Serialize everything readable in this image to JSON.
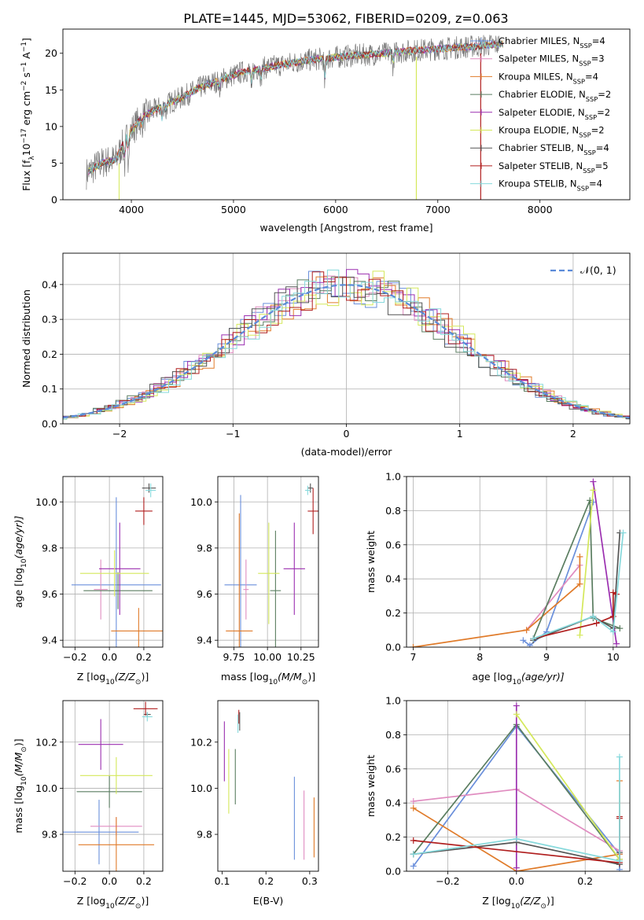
{
  "figure": {
    "title": "PLATE=1445, MJD=53062, FIBERID=0209, z=0.063"
  },
  "models": [
    {
      "label": "Chabrier MILES, N",
      "sub": "SSP",
      "suffix": "=4",
      "color": "#6a8fdb"
    },
    {
      "label": "Salpeter MILES, N",
      "sub": "SSP",
      "suffix": "=3",
      "color": "#e08cc0"
    },
    {
      "label": "Kroupa MILES, N",
      "sub": "SSP",
      "suffix": "=4",
      "color": "#e07b2a"
    },
    {
      "label": "Chabrier ELODIE, N",
      "sub": "SSP",
      "suffix": "=2",
      "color": "#5a7d60"
    },
    {
      "label": "Salpeter ELODIE, N",
      "sub": "SSP",
      "suffix": "=2",
      "color": "#9b2fb0"
    },
    {
      "label": "Kroupa ELODIE, N",
      "sub": "SSP",
      "suffix": "=2",
      "color": "#d4e85a"
    },
    {
      "label": "Chabrier STELIB, N",
      "sub": "SSP",
      "suffix": "=4",
      "color": "#555555"
    },
    {
      "label": "Salpeter STELIB, N",
      "sub": "SSP",
      "suffix": "=5",
      "color": "#b01e1e"
    },
    {
      "label": "Kroupa STELIB, N",
      "sub": "SSP",
      "suffix": "=4",
      "color": "#86d9dc"
    }
  ],
  "chart_data": [
    {
      "id": "spectrum",
      "type": "line",
      "title": "PLATE=1445, MJD=53062, FIBERID=0209, z=0.063",
      "xlabel": "wavelength [Angstrom, rest frame]",
      "ylabel_main": "Flux [f",
      "ylabel_lambda": "λ",
      "ylabel_rest": "10",
      "ylabel_exp1": "−17",
      "ylabel_mid": " erg cm",
      "ylabel_exp2": "−2",
      "ylabel_s": " s",
      "ylabel_exp3": "−1",
      "ylabel_A": " A",
      "ylabel_exp4": "−1",
      "ylabel_end": "]",
      "xlim": [
        3330,
        8880
      ],
      "ylim": [
        0,
        23.3
      ],
      "xticks": [
        4000,
        5000,
        6000,
        7000,
        8000
      ],
      "yticks": [
        0,
        5,
        10,
        15,
        20
      ],
      "continuum_x": [
        3550,
        3700,
        3850,
        3950,
        4100,
        4300,
        4500,
        4700,
        4900,
        5100,
        5300,
        5500,
        5700,
        5900,
        6100,
        6300,
        6500,
        6700,
        6900,
        7100,
        7300,
        7500,
        7700
      ],
      "continuum_y": [
        3.5,
        5.0,
        5.5,
        8.5,
        11.2,
        12.8,
        14.0,
        15.5,
        16.5,
        17.5,
        18.0,
        18.5,
        19.0,
        19.3,
        19.6,
        19.8,
        20.0,
        20.3,
        20.5,
        20.7,
        20.9,
        21.1,
        21.3
      ]
    },
    {
      "id": "residuals",
      "type": "histogram",
      "xlabel": "(data-model)/error",
      "ylabel": "Normed distribution",
      "xlim": [
        -2.5,
        2.5
      ],
      "ylim": [
        0,
        0.49
      ],
      "xticks": [
        -2,
        -1,
        0,
        1,
        2
      ],
      "yticks": [
        0.0,
        0.1,
        0.2,
        0.3,
        0.4
      ],
      "reference_label": "𝒩(0, 1)",
      "reference_color": "#5b8bd9"
    },
    {
      "id": "age-vs-Z",
      "type": "scatter",
      "xlabel": "Z [log",
      "xlabel_sub": "10",
      "xlabel_rest": "(Z/Z",
      "xlabel_sun": "⊙",
      "xlabel_end": ")]",
      "ylabel": "age  [log",
      "ylabel_sub": "10",
      "ylabel_rest": "(age/yr)]",
      "xlim": [
        -0.27,
        0.31
      ],
      "ylim": [
        9.37,
        10.11
      ],
      "xticks": [
        -0.2,
        0.0,
        0.2
      ],
      "yticks": [
        9.4,
        9.6,
        9.8,
        10.0
      ],
      "points": [
        {
          "x": 0.04,
          "y": 9.64,
          "xerr": 0.26,
          "yerr": 0.38
        },
        {
          "x": -0.05,
          "y": 9.62,
          "xerr": 0.04,
          "yerr": 0.13
        },
        {
          "x": 0.17,
          "y": 9.44,
          "xerr": 0.16,
          "yerr": 0.1
        },
        {
          "x": 0.05,
          "y": 9.615,
          "xerr": 0.2,
          "yerr": 0.08
        },
        {
          "x": 0.06,
          "y": 9.71,
          "xerr": 0.12,
          "yerr": 0.2
        },
        {
          "x": 0.03,
          "y": 9.69,
          "xerr": 0.2,
          "yerr": 0.1
        },
        {
          "x": 0.23,
          "y": 10.06,
          "xerr": 0.04,
          "yerr": 0.02
        },
        {
          "x": 0.2,
          "y": 9.96,
          "xerr": 0.05,
          "yerr": 0.06
        },
        {
          "x": 0.24,
          "y": 10.05,
          "xerr": 0.03,
          "yerr": 0.03
        }
      ]
    },
    {
      "id": "age-vs-mass",
      "type": "scatter",
      "xlabel": "mass [log",
      "xlabel_sub": "10",
      "xlabel_rest": "(M/M",
      "xlabel_sun": "⊙",
      "xlabel_end": ")]",
      "xlim": [
        9.63,
        10.38
      ],
      "ylim": [
        9.37,
        10.11
      ],
      "xticks": [
        9.75,
        10.0,
        10.25
      ],
      "xtick_labels": [
        "9.75",
        "10.00",
        "10.25"
      ],
      "yticks": [
        9.4,
        9.6,
        9.8,
        10.0
      ],
      "points": [
        {
          "x": 9.8,
          "y": 9.64,
          "xerr": 0.12,
          "yerr": 0.39
        },
        {
          "x": 9.84,
          "y": 9.62,
          "xerr": 0.02,
          "yerr": 0.13
        },
        {
          "x": 9.79,
          "y": 9.44,
          "xerr": 0.1,
          "yerr": 0.51
        },
        {
          "x": 10.06,
          "y": 9.615,
          "xerr": 0.04,
          "yerr": 0.26
        },
        {
          "x": 10.2,
          "y": 9.71,
          "xerr": 0.08,
          "yerr": 0.2
        },
        {
          "x": 10.01,
          "y": 9.69,
          "xerr": 0.08,
          "yerr": 0.22
        },
        {
          "x": 10.32,
          "y": 10.06,
          "xerr": 0.02,
          "yerr": 0.02
        },
        {
          "x": 10.34,
          "y": 9.96,
          "xerr": 0.04,
          "yerr": 0.1
        },
        {
          "x": 10.3,
          "y": 10.05,
          "xerr": 0.02,
          "yerr": 0.02
        }
      ]
    },
    {
      "id": "weight-vs-age",
      "type": "line",
      "xlabel": "age  [log",
      "xlabel_sub": "10",
      "xlabel_rest": "(age/yr)]",
      "ylabel": "mass weight",
      "xlim": [
        6.9,
        10.25
      ],
      "ylim": [
        0,
        1.0
      ],
      "xticks": [
        7,
        8,
        9,
        10
      ],
      "yticks": [
        0.0,
        0.2,
        0.4,
        0.6,
        0.8,
        1.0
      ],
      "series": [
        {
          "x": [
            8.65,
            8.75,
            9.0,
            9.7
          ],
          "y": [
            0.04,
            0.01,
            0.09,
            0.85
          ]
        },
        {
          "x": [
            8.7,
            9.5
          ],
          "y": [
            0.1,
            0.48
          ]
        },
        {
          "x": [
            7.0,
            8.7,
            9.5,
            9.5
          ],
          "y": [
            0.0,
            0.1,
            0.37,
            0.53
          ]
        },
        {
          "x": [
            8.8,
            9.65,
            9.7,
            10.1
          ],
          "y": [
            0.05,
            0.86,
            0.17,
            0.11
          ]
        },
        {
          "x": [
            9.7,
            10.05
          ],
          "y": [
            0.97,
            0.02
          ]
        },
        {
          "x": [
            9.5,
            9.7
          ],
          "y": [
            0.07,
            0.92
          ]
        },
        {
          "x": [
            8.8,
            9.7,
            10.0,
            10.1
          ],
          "y": [
            0.04,
            0.18,
            0.11,
            0.67
          ]
        },
        {
          "x": [
            8.8,
            9.75,
            10.0,
            10.0,
            10.05
          ],
          "y": [
            0.05,
            0.14,
            0.18,
            0.32,
            0.31
          ]
        },
        {
          "x": [
            8.8,
            9.7,
            10.0,
            10.15
          ],
          "y": [
            0.05,
            0.18,
            0.09,
            0.67
          ]
        }
      ]
    },
    {
      "id": "mass-vs-Z",
      "type": "scatter",
      "xlabel": "Z [log",
      "xlabel_sub": "10",
      "xlabel_rest": "(Z/Z",
      "xlabel_sun": "⊙",
      "xlabel_end": ")]",
      "ylabel": "mass [log",
      "ylabel_sub": "10",
      "ylabel_rest": "(M/M",
      "ylabel_sun": "⊙",
      "ylabel_end": ")]",
      "xlim": [
        -0.27,
        0.31
      ],
      "ylim": [
        9.64,
        10.38
      ],
      "xticks": [
        -0.2,
        0.0,
        0.2
      ],
      "yticks": [
        9.8,
        10.0,
        10.2
      ],
      "points": [
        {
          "x": -0.06,
          "y": 9.81,
          "xerr": 0.23,
          "yerr": 0.14
        },
        {
          "x": 0.04,
          "y": 9.835,
          "xerr": 0.15,
          "yerr": 0.04
        },
        {
          "x": 0.04,
          "y": 9.755,
          "xerr": 0.22,
          "yerr": 0.12
        },
        {
          "x": 0.0,
          "y": 9.985,
          "xerr": 0.19,
          "yerr": 0.07
        },
        {
          "x": -0.05,
          "y": 10.19,
          "xerr": 0.13,
          "yerr": 0.11
        },
        {
          "x": 0.04,
          "y": 10.055,
          "xerr": 0.21,
          "yerr": 0.08
        },
        {
          "x": 0.22,
          "y": 10.32,
          "xerr": 0.02,
          "yerr": 0.01
        },
        {
          "x": 0.21,
          "y": 10.345,
          "xerr": 0.07,
          "yerr": 0.03
        },
        {
          "x": 0.22,
          "y": 10.31,
          "xerr": 0.03,
          "yerr": 0.02
        }
      ]
    },
    {
      "id": "mass-vs-EBV",
      "type": "scatter",
      "xlabel": "E(B-V)",
      "xlim": [
        0.09,
        0.32
      ],
      "ylim": [
        9.64,
        10.38
      ],
      "xticks": [
        0.1,
        0.2,
        0.3
      ],
      "yticks": [
        9.8,
        10.0,
        10.2
      ],
      "points": [
        {
          "x": 0.265,
          "y": 9.87,
          "xerr": 0.0,
          "yerr": 0.18
        },
        {
          "x": 0.287,
          "y": 9.84,
          "xerr": 0.0,
          "yerr": 0.15
        },
        {
          "x": 0.31,
          "y": 9.83,
          "xerr": 0.0,
          "yerr": 0.13
        },
        {
          "x": 0.13,
          "y": 10.05,
          "xerr": 0.0,
          "yerr": 0.12
        },
        {
          "x": 0.105,
          "y": 10.16,
          "xerr": 0.0,
          "yerr": 0.13
        },
        {
          "x": 0.115,
          "y": 10.03,
          "xerr": 0.0,
          "yerr": 0.14
        },
        {
          "x": 0.14,
          "y": 10.29,
          "xerr": 0.0,
          "yerr": 0.04
        },
        {
          "x": 0.138,
          "y": 10.31,
          "xerr": 0.0,
          "yerr": 0.03
        },
        {
          "x": 0.136,
          "y": 10.28,
          "xerr": 0.0,
          "yerr": 0.04
        }
      ]
    },
    {
      "id": "weight-vs-Z",
      "type": "line",
      "xlabel": "Z [log",
      "xlabel_sub": "10",
      "xlabel_rest": "(Z/Z",
      "xlabel_sun": "⊙",
      "xlabel_end": ")]",
      "ylabel": "mass weight",
      "xlim": [
        -0.32,
        0.33
      ],
      "ylim": [
        0,
        1.0
      ],
      "xticks": [
        -0.2,
        0.0,
        0.2
      ],
      "yticks": [
        0.0,
        0.2,
        0.4,
        0.6,
        0.8,
        1.0
      ],
      "series": [
        {
          "x": [
            -0.3,
            0.0,
            0.3,
            0.3
          ],
          "y": [
            0.03,
            0.85,
            0.1,
            0.01
          ]
        },
        {
          "x": [
            -0.3,
            0.0,
            0.3
          ],
          "y": [
            0.41,
            0.48,
            0.12
          ]
        },
        {
          "x": [
            -0.3,
            0.0,
            0.3,
            0.3
          ],
          "y": [
            0.37,
            0.0,
            0.1,
            0.53
          ]
        },
        {
          "x": [
            -0.3,
            0.0,
            0.3
          ],
          "y": [
            0.1,
            0.86,
            0.07
          ]
        },
        {
          "x": [
            0.0,
            0.0
          ],
          "y": [
            0.97,
            0.02
          ]
        },
        {
          "x": [
            0.0,
            0.3
          ],
          "y": [
            0.92,
            0.07
          ]
        },
        {
          "x": [
            -0.3,
            0.0,
            0.3,
            0.3
          ],
          "y": [
            0.1,
            0.17,
            0.04,
            0.11
          ]
        },
        {
          "x": [
            -0.3,
            0.3,
            0.3,
            0.3
          ],
          "y": [
            0.18,
            0.05,
            0.32,
            0.31
          ]
        },
        {
          "x": [
            -0.3,
            0.0,
            0.3,
            0.3
          ],
          "y": [
            0.1,
            0.19,
            0.06,
            0.67
          ]
        }
      ]
    }
  ]
}
